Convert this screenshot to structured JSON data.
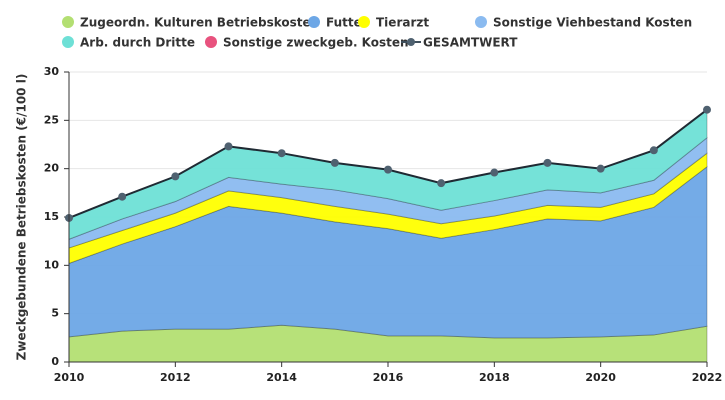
{
  "chart_data": {
    "type": "area",
    "stacked": true,
    "y_label": "Zweckgebundene Betriebskosten (€/100 l)",
    "x": [
      2010,
      2011,
      2012,
      2013,
      2014,
      2015,
      2016,
      2017,
      2018,
      2019,
      2020,
      2021,
      2022
    ],
    "xlim": [
      2010,
      2022
    ],
    "xticks": [
      2010,
      2012,
      2014,
      2016,
      2018,
      2020,
      2022
    ],
    "ylim": [
      0,
      30
    ],
    "yticks": [
      0,
      5,
      10,
      15,
      20,
      25,
      30
    ],
    "grid": true,
    "series": [
      {
        "name": "Zugeordn. Kulturen Betriebskosten",
        "color": "#b3df72",
        "values": [
          2.6,
          3.2,
          3.4,
          3.4,
          3.8,
          3.4,
          2.7,
          2.7,
          2.5,
          2.5,
          2.6,
          2.8,
          3.7
        ]
      },
      {
        "name": "Futter",
        "color": "#6da7e6",
        "values": [
          7.6,
          9.0,
          10.6,
          12.7,
          11.6,
          11.1,
          11.1,
          10.1,
          11.2,
          12.3,
          12.0,
          13.2,
          16.5
        ]
      },
      {
        "name": "Tierarzt",
        "color": "#ffff00",
        "values": [
          1.6,
          1.4,
          1.4,
          1.6,
          1.6,
          1.6,
          1.5,
          1.5,
          1.4,
          1.4,
          1.4,
          1.4,
          1.4
        ]
      },
      {
        "name": "Sonstige Viehbestand Kosten",
        "color": "#8bbbf0",
        "values": [
          0.9,
          1.2,
          1.2,
          1.4,
          1.4,
          1.7,
          1.6,
          1.4,
          1.6,
          1.6,
          1.5,
          1.4,
          1.6
        ]
      },
      {
        "name": "Arb. durch Dritte",
        "color": "#6ee0d6",
        "values": [
          2.2,
          2.3,
          2.6,
          3.2,
          3.2,
          2.8,
          3.0,
          2.8,
          2.9,
          2.8,
          2.5,
          3.1,
          2.9
        ]
      },
      {
        "name": "Sonstige zweckgeb. Kosten",
        "color": "#e8527e",
        "values": [
          0,
          0,
          0,
          0,
          0,
          0,
          0,
          0,
          0,
          0,
          0,
          0,
          0
        ]
      },
      {
        "name": "GESAMTWERT",
        "color": "#3f4f5c",
        "type": "line",
        "values": [
          14.9,
          17.1,
          19.2,
          22.3,
          21.6,
          20.6,
          19.9,
          18.5,
          19.6,
          20.6,
          20.0,
          21.9,
          26.1
        ]
      }
    ]
  }
}
